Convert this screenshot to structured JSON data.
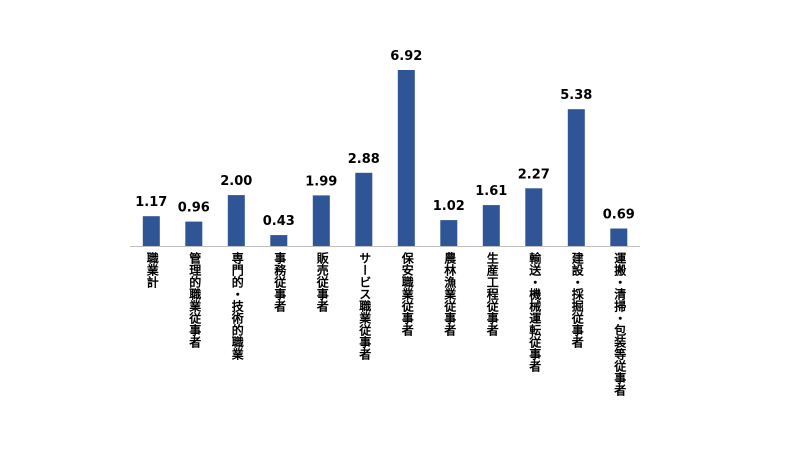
{
  "chart_data": {
    "type": "bar",
    "categories": [
      "職業計",
      "管理的職業従事者",
      "専門的・技術的職業",
      "事務従事者",
      "販売従事者",
      "サービス職業従事者",
      "保安職業従事者",
      "農林漁業従事者",
      "生産工程従事者",
      "輸送・機械運転従事者",
      "建設・採掘従事者",
      "運搬・清掃・包装等従事者"
    ],
    "values": [
      1.17,
      0.96,
      2.0,
      0.43,
      1.99,
      2.88,
      6.92,
      1.02,
      1.61,
      2.27,
      5.38,
      0.69
    ],
    "value_labels": [
      "1.17",
      "0.96",
      "2.00",
      "0.43",
      "1.99",
      "2.88",
      "6.92",
      "1.02",
      "1.61",
      "2.27",
      "5.38",
      "0.69"
    ],
    "title": "",
    "xlabel": "",
    "ylabel": "",
    "ylim": [
      0,
      6.92
    ],
    "grid": false,
    "legend": "none",
    "colors": {
      "bar": "#2F5597",
      "axis": "#bfbfbf",
      "text": "#000000"
    }
  }
}
